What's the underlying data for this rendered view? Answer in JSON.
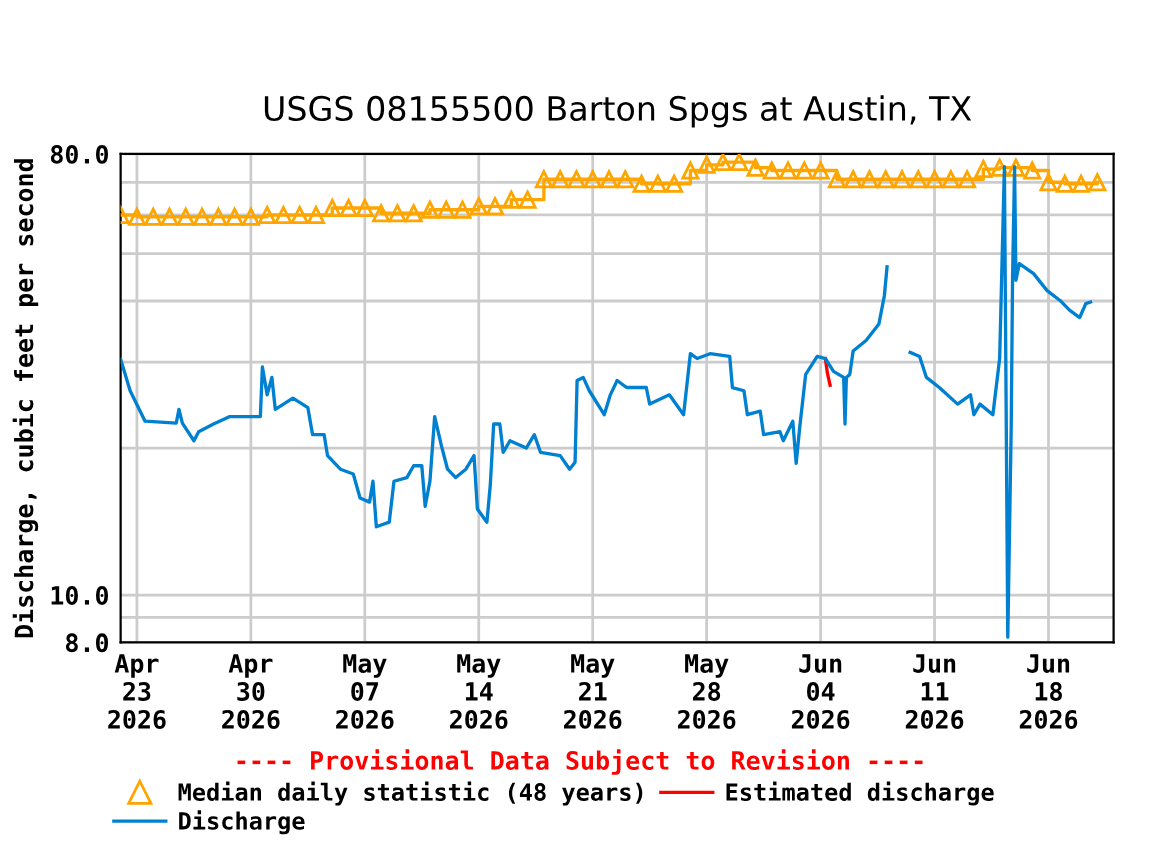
{
  "chart_data": {
    "type": "line",
    "title": "USGS 08155500 Barton Spgs at Austin, TX",
    "ylabel": "Discharge, cubic feet per second",
    "annotations": [
      "---- Provisional Data Subject to Revision ----"
    ],
    "log": "y",
    "grid": true,
    "legend": "bottom",
    "xlim": [
      "2026-04-22",
      "2026-06-22"
    ],
    "xticks": [
      {
        "value": "2026-04-23",
        "label": "Apr\n23\n2026"
      },
      {
        "value": "2026-04-30",
        "label": "Apr\n30\n2026"
      },
      {
        "value": "2026-05-07",
        "label": "May\n07\n2026"
      },
      {
        "value": "2026-05-14",
        "label": "May\n14\n2026"
      },
      {
        "value": "2026-05-21",
        "label": "May\n21\n2026"
      },
      {
        "value": "2026-05-28",
        "label": "May\n28\n2026"
      },
      {
        "value": "2026-06-04",
        "label": "Jun\n04\n2026"
      },
      {
        "value": "2026-06-11",
        "label": "Jun\n11\n2026"
      },
      {
        "value": "2026-06-18",
        "label": "Jun\n18\n2026"
      }
    ],
    "ylim": [
      8,
      80
    ],
    "yticks": [
      {
        "value": 8,
        "label": "8.0"
      },
      {
        "value": 9,
        "label": null
      },
      {
        "value": 10,
        "label": "10.0"
      },
      {
        "value": 20,
        "label": null
      },
      {
        "value": 30,
        "label": null
      },
      {
        "value": 40,
        "label": null
      },
      {
        "value": 50,
        "label": null
      },
      {
        "value": 60,
        "label": null
      },
      {
        "value": 70,
        "label": null
      },
      {
        "value": 80,
        "label": "80.0"
      }
    ],
    "series": [
      {
        "name": "Median daily statistic (48 years)",
        "type": "step",
        "marker": "triangle",
        "color": "#ffa500",
        "x": [
          "2026-04-22",
          "2026-04-23",
          "2026-04-24",
          "2026-04-25",
          "2026-04-26",
          "2026-04-27",
          "2026-04-28",
          "2026-04-29",
          "2026-04-30",
          "2026-05-01",
          "2026-05-02",
          "2026-05-03",
          "2026-05-04",
          "2026-05-05",
          "2026-05-06",
          "2026-05-07",
          "2026-05-08",
          "2026-05-09",
          "2026-05-10",
          "2026-05-11",
          "2026-05-12",
          "2026-05-13",
          "2026-05-14",
          "2026-05-15",
          "2026-05-16",
          "2026-05-17",
          "2026-05-18",
          "2026-05-19",
          "2026-05-20",
          "2026-05-21",
          "2026-05-22",
          "2026-05-23",
          "2026-05-24",
          "2026-05-25",
          "2026-05-26",
          "2026-05-27",
          "2026-05-28",
          "2026-05-29",
          "2026-05-30",
          "2026-05-31",
          "2026-06-01",
          "2026-06-02",
          "2026-06-03",
          "2026-06-04",
          "2026-06-05",
          "2026-06-06",
          "2026-06-07",
          "2026-06-08",
          "2026-06-09",
          "2026-06-10",
          "2026-06-11",
          "2026-06-12",
          "2026-06-13",
          "2026-06-14",
          "2026-06-15",
          "2026-06-16",
          "2026-06-17",
          "2026-06-18",
          "2026-06-19",
          "2026-06-20",
          "2026-06-21"
        ],
        "values": [
          60,
          59.5,
          59.5,
          59.5,
          59.5,
          59.5,
          59.5,
          59.5,
          59.5,
          60,
          60,
          60,
          60,
          62,
          62,
          62,
          60.5,
          60.5,
          60.5,
          61.5,
          61.5,
          61.5,
          62.5,
          62.5,
          64.5,
          64.5,
          71,
          71,
          71,
          71,
          71,
          71,
          69.5,
          69.5,
          69.5,
          74,
          76,
          77,
          77,
          75,
          74,
          74,
          74,
          74,
          71,
          71,
          71,
          71,
          71,
          71,
          71,
          71,
          71,
          74.5,
          75,
          75,
          74,
          70,
          69.5,
          69.5,
          70
        ]
      },
      {
        "name": "Estimated discharge",
        "type": "line",
        "color": "#ff0000",
        "x": [
          "2026-06-04T07:00",
          "2026-06-04T10:00",
          "2026-06-04T14:00"
        ],
        "values": [
          30.5,
          28.5,
          26.9
        ]
      },
      {
        "name": "Discharge",
        "color": "#0080d0",
        "x": [
          "2026-04-22T00:00",
          "2026-04-22T14:00",
          "2026-04-23T12:00",
          "2026-04-25T10:00",
          "2026-04-25T14:00",
          "2026-04-25T19:00",
          "2026-04-26T12:00",
          "2026-04-26T19:00",
          "2026-04-27T17:00",
          "2026-04-28T17:00",
          "2026-04-30T14:00",
          "2026-04-30T17:00",
          "2026-05-01T00:00",
          "2026-05-01T07:00",
          "2026-05-01T12:00",
          "2026-05-02T14:00",
          "2026-05-03T12:00",
          "2026-05-03T19:00",
          "2026-05-04T12:00",
          "2026-05-04T17:00",
          "2026-05-05T12:00",
          "2026-05-06T07:00",
          "2026-05-06T17:00",
          "2026-05-07T07:00",
          "2026-05-07T12:00",
          "2026-05-07T17:00",
          "2026-05-08T12:00",
          "2026-05-08T19:00",
          "2026-05-09T14:00",
          "2026-05-10T00:00",
          "2026-05-10T12:00",
          "2026-05-10T17:00",
          "2026-05-11T00:00",
          "2026-05-11T07:00",
          "2026-05-11T17:00",
          "2026-05-12T02:00",
          "2026-05-12T14:00",
          "2026-05-13T05:00",
          "2026-05-13T17:00",
          "2026-05-13T22:00",
          "2026-05-14T12:00",
          "2026-05-14T17:00",
          "2026-05-14T22:00",
          "2026-05-15T07:00",
          "2026-05-15T12:00",
          "2026-05-15T22:00",
          "2026-05-16T22:00",
          "2026-05-17T10:00",
          "2026-05-17T19:00",
          "2026-05-19T00:00",
          "2026-05-19T14:00",
          "2026-05-19T22:00",
          "2026-05-20T01:00",
          "2026-05-20T10:00",
          "2026-05-20T19:00",
          "2026-05-21T17:00",
          "2026-05-22T02:00",
          "2026-05-22T12:00",
          "2026-05-23T02:00",
          "2026-05-24T07:00",
          "2026-05-24T12:00",
          "2026-05-25T17:00",
          "2026-05-26T14:00",
          "2026-05-27T00:00",
          "2026-05-27T10:00",
          "2026-05-28T05:00",
          "2026-05-29T10:00",
          "2026-05-29T14:00",
          "2026-05-30T07:00",
          "2026-05-30T12:00",
          "2026-05-31T07:00",
          "2026-05-31T12:00",
          "2026-06-01T12:00",
          "2026-06-01T17:00",
          "2026-06-02T07:00",
          "2026-06-02T12:00",
          "2026-06-02T17:00",
          "2026-06-03T02:00",
          "2026-06-03T19:00",
          "2026-06-04T07:00",
          "2026-06-04T19:00",
          "2026-06-05T10:00",
          "2026-06-05T12:00",
          "2026-06-05T14:00",
          "2026-06-05T19:00",
          "2026-06-06T00:00",
          "2026-06-06T19:00",
          "2026-06-07T14:00",
          "2026-06-07T22:00",
          "2026-06-08T02:00",
          "2026-06-08T12:00",
          "2026-06-09T12:00",
          "2026-06-10T02:00",
          "2026-06-10T12:00",
          "2026-06-11T07:00",
          "2026-06-12T10:00",
          "2026-06-13T05:00",
          "2026-06-13T10:00",
          "2026-06-13T19:00",
          "2026-06-14T14:00",
          "2026-06-15T00:00",
          "2026-06-15T07:00",
          "2026-06-15T12:00",
          "2026-06-15T17:00",
          "2026-06-15T19:00",
          "2026-06-15T22:00",
          "2026-06-16T00:00",
          "2026-06-16T05:00",
          "2026-06-17T02:00",
          "2026-06-17T22:00",
          "2026-06-18T17:00",
          "2026-06-19T07:00",
          "2026-06-19T22:00",
          "2026-06-20T07:00",
          "2026-06-20T14:00"
        ],
        "values": [
          30.4,
          26.2,
          22.7,
          22.5,
          24,
          22.5,
          20.7,
          21.6,
          22.4,
          23.2,
          23.2,
          29.3,
          25.7,
          27.9,
          24.0,
          25.3,
          24.2,
          21.3,
          21.3,
          19.3,
          18.1,
          17.7,
          15.8,
          15.5,
          17.1,
          13.8,
          14.1,
          17.1,
          17.4,
          18.4,
          18.4,
          15.2,
          17.1,
          23.2,
          20.2,
          18.1,
          17.4,
          18.1,
          19.3,
          15.0,
          14.1,
          16.8,
          22.4,
          22.4,
          19.6,
          20.7,
          20.0,
          21.3,
          19.6,
          19.3,
          18.1,
          18.7,
          27.5,
          27.9,
          26.2,
          23.4,
          25.7,
          27.5,
          26.6,
          26.6,
          24.6,
          25.7,
          23.4,
          31.2,
          30.5,
          31.2,
          30.8,
          26.6,
          26.2,
          23.4,
          23.8,
          21.3,
          21.6,
          20.7,
          22.7,
          18.6,
          21.9,
          28.3,
          30.8,
          30.5,
          28.7,
          27.9,
          22.4,
          27.9,
          28.3,
          31.6,
          33.2,
          35.9,
          41.0,
          47.0,
          null,
          31.4,
          30.8,
          27.9,
          26.6,
          24.6,
          25.7,
          23.4,
          24.6,
          23.4,
          30.5,
          75.3,
          8.2,
          21.9,
          44.1,
          75.3,
          44.1,
          47.7,
          45.5,
          42.0,
          40.1,
          38.3,
          37.0,
          39.5,
          39.8
        ]
      }
    ]
  }
}
